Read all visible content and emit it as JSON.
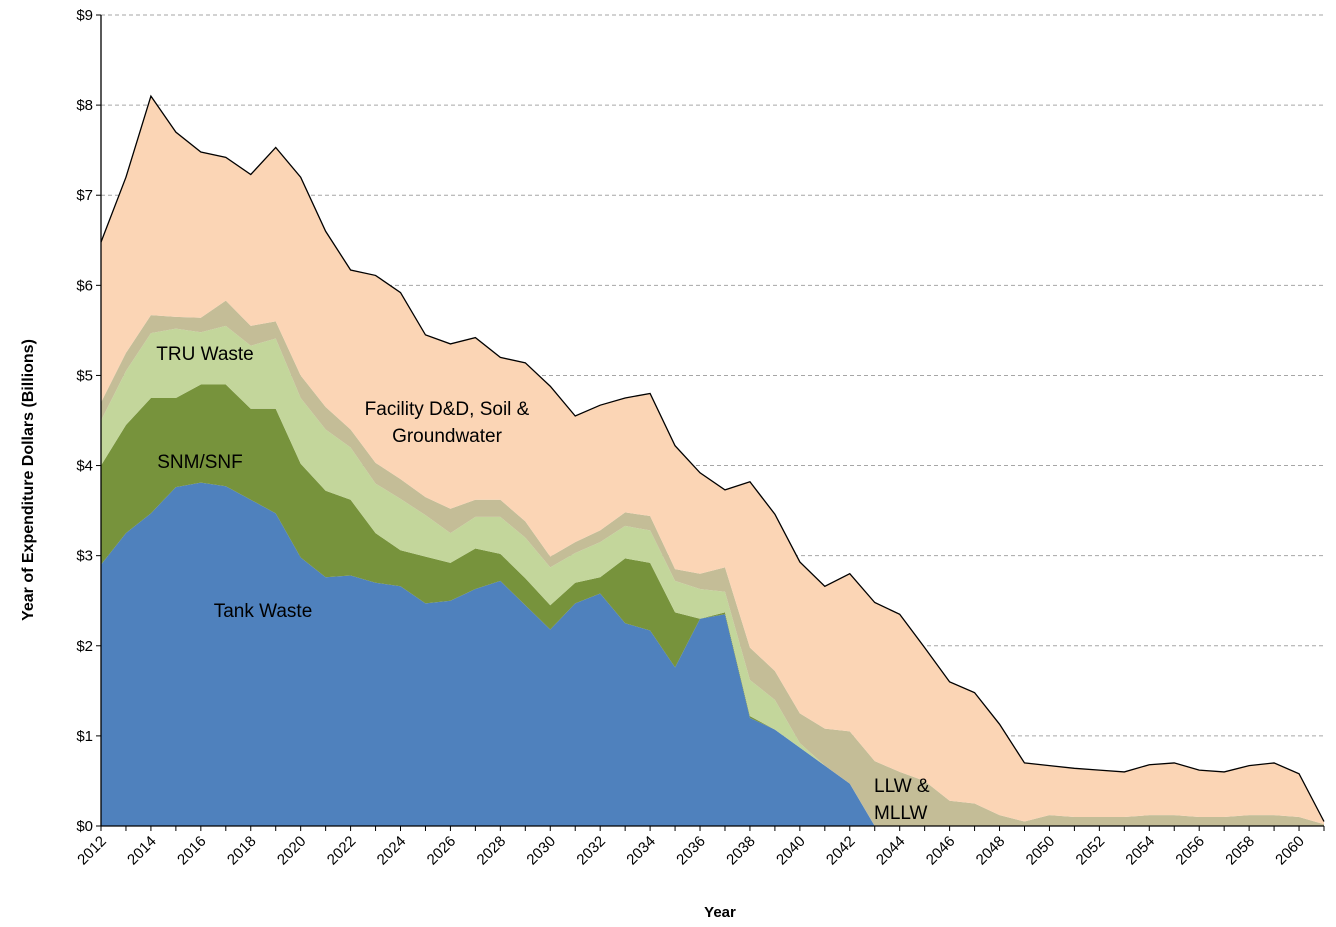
{
  "chart_data": {
    "type": "stacked_area",
    "xlabel": "Year",
    "ylabel": "Year of Expenditure Dollars (Billions)",
    "x": [
      2012,
      2013,
      2014,
      2015,
      2016,
      2017,
      2018,
      2019,
      2020,
      2021,
      2022,
      2023,
      2024,
      2025,
      2026,
      2027,
      2028,
      2029,
      2030,
      2031,
      2032,
      2033,
      2034,
      2035,
      2036,
      2037,
      2038,
      2039,
      2040,
      2041,
      2042,
      2043,
      2044,
      2045,
      2046,
      2047,
      2048,
      2049,
      2050,
      2051,
      2052,
      2053,
      2054,
      2055,
      2056,
      2057,
      2058,
      2059,
      2060,
      2061
    ],
    "xlim": [
      2012,
      2061
    ],
    "xticks": [
      2012,
      2014,
      2016,
      2018,
      2020,
      2022,
      2024,
      2026,
      2028,
      2030,
      2032,
      2034,
      2036,
      2038,
      2040,
      2042,
      2044,
      2046,
      2048,
      2050,
      2052,
      2054,
      2056,
      2058,
      2060
    ],
    "ylim": [
      0,
      9
    ],
    "yticks": [
      {
        "value": 0,
        "label": "$0"
      },
      {
        "value": 1,
        "label": "$1"
      },
      {
        "value": 2,
        "label": "$2"
      },
      {
        "value": 3,
        "label": "$3"
      },
      {
        "value": 4,
        "label": "$4"
      },
      {
        "value": 5,
        "label": "$5"
      },
      {
        "value": 6,
        "label": "$6"
      },
      {
        "value": 7,
        "label": "$7"
      },
      {
        "value": 8,
        "label": "$8"
      },
      {
        "value": 9,
        "label": "$9"
      }
    ],
    "grid": true,
    "series": [
      {
        "name": "Tank Waste",
        "color": "#4f81bd",
        "values": [
          2.9,
          3.25,
          3.47,
          3.76,
          3.81,
          3.77,
          3.62,
          3.47,
          2.98,
          2.76,
          2.78,
          2.7,
          2.66,
          2.47,
          2.5,
          2.63,
          2.72,
          2.45,
          2.18,
          2.47,
          2.58,
          2.25,
          2.17,
          1.76,
          2.3,
          2.35,
          1.2,
          1.07,
          0.87,
          0.67,
          0.47,
          0,
          0,
          0,
          0,
          0,
          0,
          0,
          0,
          0,
          0,
          0,
          0,
          0,
          0,
          0,
          0,
          0,
          0,
          0
        ]
      },
      {
        "name": "SNM/SNF",
        "color": "#77933c",
        "values": [
          1.1,
          1.2,
          1.28,
          0.99,
          1.09,
          1.13,
          1.01,
          1.16,
          1.04,
          0.96,
          0.84,
          0.55,
          0.4,
          0.52,
          0.42,
          0.45,
          0.3,
          0.3,
          0.27,
          0.23,
          0.18,
          0.72,
          0.75,
          0.61,
          0,
          0.02,
          0.02,
          0,
          0,
          0,
          0,
          0,
          0,
          0,
          0,
          0,
          0,
          0,
          0,
          0,
          0,
          0,
          0,
          0,
          0,
          0,
          0,
          0,
          0,
          0
        ]
      },
      {
        "name": "TRU Waste",
        "color": "#c3d69b",
        "values": [
          0.5,
          0.6,
          0.72,
          0.77,
          0.58,
          0.65,
          0.7,
          0.78,
          0.73,
          0.68,
          0.58,
          0.55,
          0.57,
          0.46,
          0.33,
          0.35,
          0.41,
          0.45,
          0.42,
          0.33,
          0.39,
          0.36,
          0.36,
          0.35,
          0.33,
          0.23,
          0.4,
          0.33,
          0.05,
          0,
          0,
          0,
          0,
          0,
          0,
          0,
          0,
          0,
          0,
          0,
          0,
          0,
          0,
          0,
          0,
          0,
          0,
          0,
          0,
          0
        ]
      },
      {
        "name": "LLW & MLLW",
        "color": "#c4bd97",
        "values": [
          0.2,
          0.2,
          0.2,
          0.13,
          0.16,
          0.28,
          0.22,
          0.19,
          0.25,
          0.25,
          0.2,
          0.23,
          0.22,
          0.2,
          0.27,
          0.19,
          0.19,
          0.18,
          0.12,
          0.12,
          0.13,
          0.15,
          0.16,
          0.13,
          0.17,
          0.27,
          0.36,
          0.32,
          0.33,
          0.41,
          0.58,
          0.72,
          0.6,
          0.5,
          0.28,
          0.25,
          0.12,
          0.05,
          0.12,
          0.1,
          0.1,
          0.1,
          0.12,
          0.12,
          0.1,
          0.1,
          0.12,
          0.12,
          0.1,
          0.02
        ]
      },
      {
        "name": "Facility D&D, Soil & Groundwater",
        "color": "#fbd5b5",
        "values": [
          1.78,
          1.95,
          2.43,
          2.05,
          1.84,
          1.59,
          1.68,
          1.93,
          2.2,
          1.95,
          1.77,
          2.08,
          2.07,
          1.8,
          1.83,
          1.8,
          1.58,
          1.76,
          1.89,
          1.4,
          1.39,
          1.27,
          1.36,
          1.37,
          1.12,
          0.86,
          1.84,
          1.74,
          1.68,
          1.58,
          1.75,
          1.76,
          1.75,
          1.48,
          1.32,
          1.23,
          1.01,
          0.65,
          0.55,
          0.54,
          0.52,
          0.5,
          0.56,
          0.58,
          0.52,
          0.5,
          0.55,
          0.58,
          0.48,
          0.03
        ]
      }
    ]
  }
}
